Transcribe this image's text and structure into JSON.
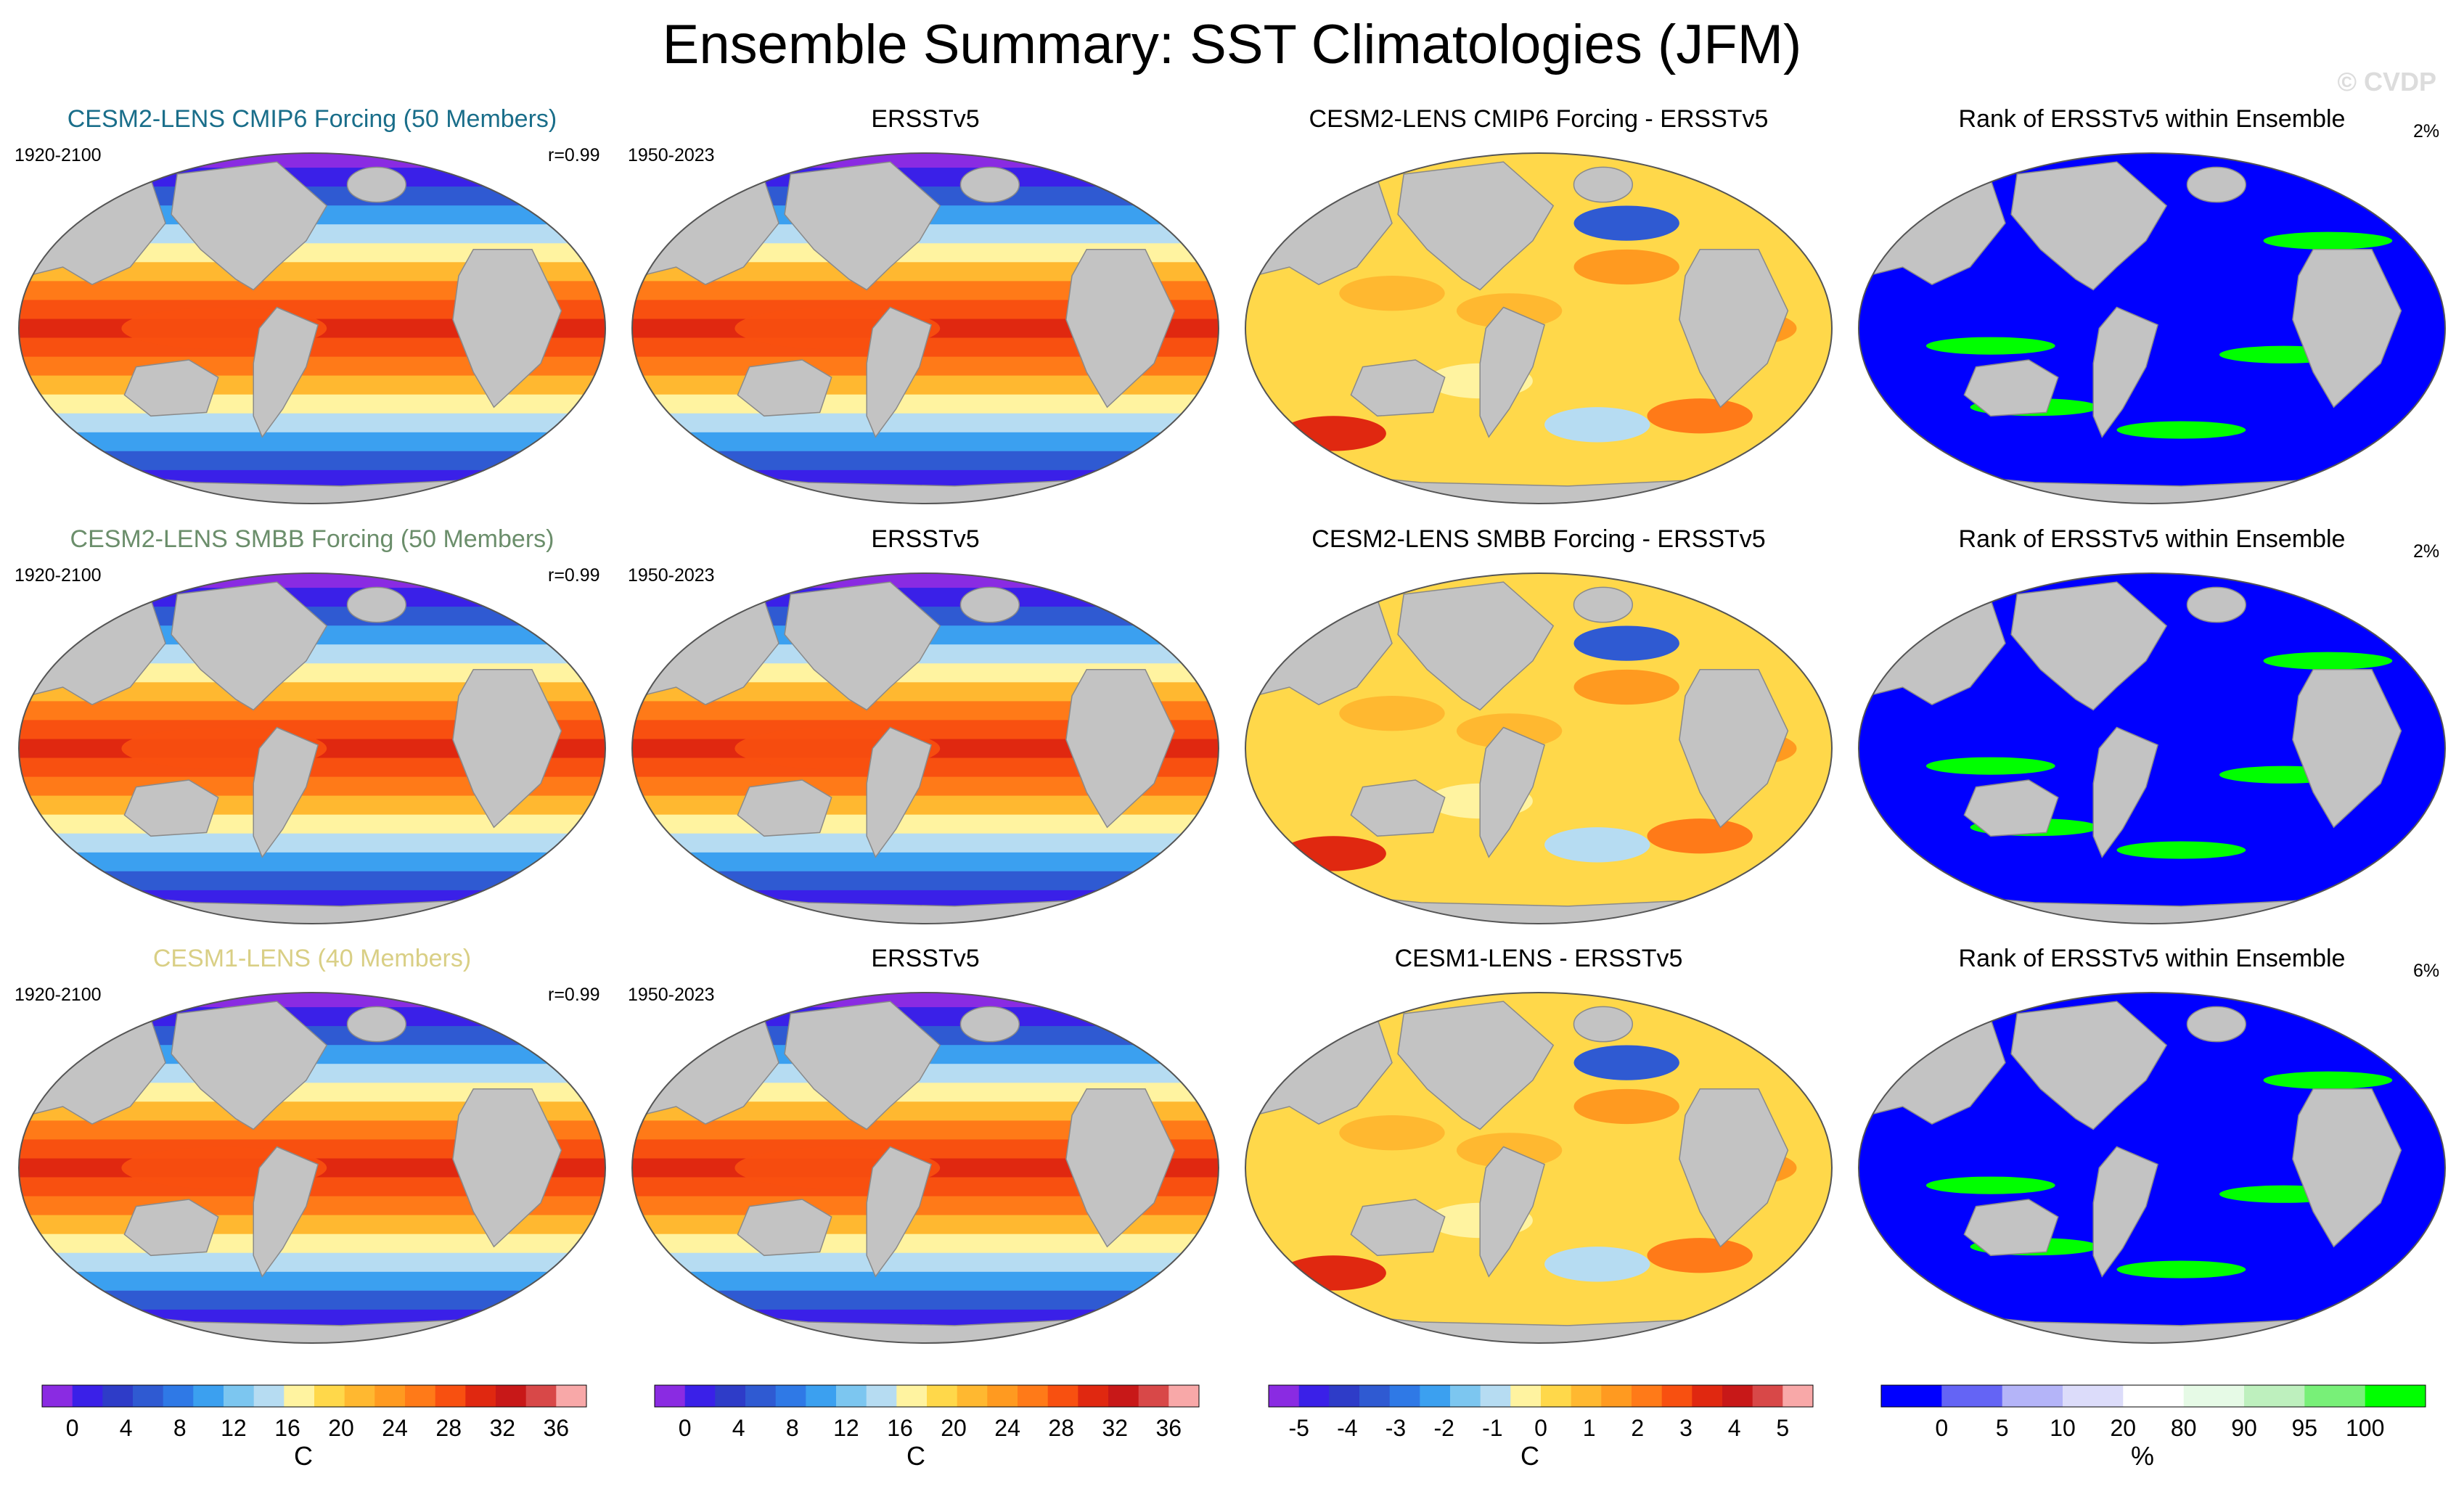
{
  "title": "Ensemble Summary: SST Climatologies (JFM)",
  "watermark": "© CVDP",
  "rows": [
    {
      "model": {
        "title": "CESM2-LENS CMIP6 Forcing (50 Members)",
        "title_color": "#1a6e8a",
        "years": "1920-2100",
        "corr": "r=0.99"
      },
      "obs": {
        "title": "ERSSTv5",
        "years": "1950-2023"
      },
      "diff": {
        "title": "CESM2-LENS CMIP6 Forcing - ERSSTv5"
      },
      "rank": {
        "title": "Rank of ERSSTv5 within Ensemble",
        "pct": "2%"
      }
    },
    {
      "model": {
        "title": "CESM2-LENS SMBB Forcing (50 Members)",
        "title_color": "#6b8e6b",
        "years": "1920-2100",
        "corr": "r=0.99"
      },
      "obs": {
        "title": "ERSSTv5",
        "years": "1950-2023"
      },
      "diff": {
        "title": "CESM2-LENS SMBB Forcing - ERSSTv5"
      },
      "rank": {
        "title": "Rank of ERSSTv5 within Ensemble",
        "pct": "2%"
      }
    },
    {
      "model": {
        "title": "CESM1-LENS (40 Members)",
        "title_color": "#d9cf85",
        "years": "1920-2100",
        "corr": "r=0.99"
      },
      "obs": {
        "title": "ERSSTv5",
        "years": "1950-2023"
      },
      "diff": {
        "title": "CESM1-LENS - ERSSTv5"
      },
      "rank": {
        "title": "Rank of ERSSTv5 within Ensemble",
        "pct": "6%"
      }
    }
  ],
  "colorbars": [
    {
      "unit": "C",
      "ticks": [
        "0",
        "4",
        "8",
        "12",
        "16",
        "20",
        "24",
        "28",
        "32",
        "36"
      ],
      "colors": [
        "#8a2be2",
        "#3a20e8",
        "#2e3cc8",
        "#2f5ad2",
        "#2f79e6",
        "#3ba0f0",
        "#7cc6f0",
        "#b6dcf2",
        "#fff3a0",
        "#ffd84a",
        "#ffb830",
        "#ff9a20",
        "#ff7a18",
        "#f85010",
        "#e02810",
        "#c81818",
        "#d84848",
        "#f8a8a8"
      ]
    },
    {
      "unit": "C",
      "ticks": [
        "0",
        "4",
        "8",
        "12",
        "16",
        "20",
        "24",
        "28",
        "32",
        "36"
      ],
      "colors": [
        "#8a2be2",
        "#3a20e8",
        "#2e3cc8",
        "#2f5ad2",
        "#2f79e6",
        "#3ba0f0",
        "#7cc6f0",
        "#b6dcf2",
        "#fff3a0",
        "#ffd84a",
        "#ffb830",
        "#ff9a20",
        "#ff7a18",
        "#f85010",
        "#e02810",
        "#c81818",
        "#d84848",
        "#f8a8a8"
      ]
    },
    {
      "unit": "C",
      "ticks": [
        "-5",
        "-4",
        "-3",
        "-2",
        "-1",
        "0",
        "1",
        "2",
        "3",
        "4",
        "5"
      ],
      "colors": [
        "#8a2be2",
        "#3a20e8",
        "#2e3cc8",
        "#2f5ad2",
        "#2f79e6",
        "#3ba0f0",
        "#7cc6f0",
        "#b6dcf2",
        "#fff3a0",
        "#ffd84a",
        "#ffb830",
        "#ff9a20",
        "#ff7a18",
        "#f85010",
        "#e02810",
        "#c81818",
        "#d84848",
        "#f8a8a8"
      ]
    },
    {
      "unit": "%",
      "ticks": [
        "0",
        "5",
        "10",
        "20",
        "80",
        "90",
        "95",
        "100"
      ],
      "colors": [
        "#0000ff",
        "#6464f5",
        "#b4b4f8",
        "#dcdcfa",
        "#ffffff",
        "#e6fae6",
        "#bef0be",
        "#78f078",
        "#00ff00"
      ]
    }
  ],
  "chart_data": [
    {
      "type": "heatmap",
      "panel": "model climatology",
      "rows": 3,
      "levels": [
        "0",
        "4",
        "8",
        "12",
        "16",
        "20",
        "24",
        "28",
        "32",
        "36"
      ],
      "units": "C"
    },
    {
      "type": "heatmap",
      "panel": "observed climatology",
      "rows": 3,
      "levels": [
        "0",
        "4",
        "8",
        "12",
        "16",
        "20",
        "24",
        "28",
        "32",
        "36"
      ],
      "units": "C"
    },
    {
      "type": "heatmap",
      "panel": "difference",
      "rows": 3,
      "levels": [
        "-5",
        "-4",
        "-3",
        "-2",
        "-1",
        "0",
        "1",
        "2",
        "3",
        "4",
        "5"
      ],
      "units": "C"
    },
    {
      "type": "heatmap",
      "panel": "rank",
      "rows": 3,
      "levels": [
        "0",
        "5",
        "10",
        "20",
        "80",
        "90",
        "95",
        "100"
      ],
      "units": "%"
    }
  ]
}
